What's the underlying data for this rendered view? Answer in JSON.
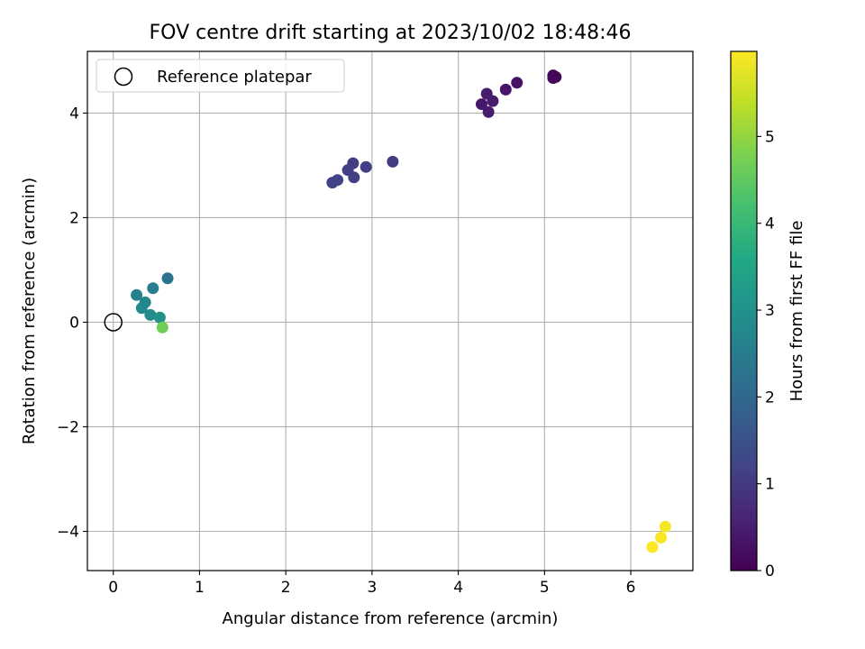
{
  "chart_data": {
    "type": "scatter",
    "title": "FOV centre drift starting at 2023/10/02 18:48:46",
    "xlabel": "Angular distance from reference (arcmin)",
    "ylabel": "Rotation from reference (arcmin)",
    "xlim": [
      -0.3,
      6.72
    ],
    "ylim": [
      -4.75,
      5.18
    ],
    "xticks": [
      0,
      1,
      2,
      3,
      4,
      5,
      6
    ],
    "yticks": [
      -4,
      -2,
      0,
      2,
      4
    ],
    "xtick_labels": [
      "0",
      "1",
      "2",
      "3",
      "4",
      "5",
      "6"
    ],
    "ytick_labels": [
      "−4",
      "−2",
      "0",
      "2",
      "4"
    ],
    "grid": true,
    "legend": {
      "position": "upper-left",
      "label": "Reference platepar"
    },
    "reference_point": {
      "x": 0,
      "y": 0
    },
    "colorbar": {
      "label": "Hours from first FF file",
      "colormap": "viridis",
      "range": [
        0,
        5.98
      ],
      "ticks": [
        0,
        1,
        2,
        3,
        4,
        5
      ],
      "tick_labels": [
        "0",
        "1",
        "2",
        "3",
        "4",
        "5"
      ]
    },
    "points": [
      {
        "x": 5.1,
        "y": 4.72,
        "hours": 0.05
      },
      {
        "x": 5.13,
        "y": 4.69,
        "hours": 0.08
      },
      {
        "x": 5.1,
        "y": 4.67,
        "hours": 0.1
      },
      {
        "x": 4.68,
        "y": 4.58,
        "hours": 0.3
      },
      {
        "x": 4.55,
        "y": 4.45,
        "hours": 0.35
      },
      {
        "x": 4.33,
        "y": 4.37,
        "hours": 0.45
      },
      {
        "x": 4.4,
        "y": 4.23,
        "hours": 0.45
      },
      {
        "x": 4.27,
        "y": 4.17,
        "hours": 0.4
      },
      {
        "x": 4.35,
        "y": 4.02,
        "hours": 0.45
      },
      {
        "x": 3.24,
        "y": 3.07,
        "hours": 1.05
      },
      {
        "x": 2.78,
        "y": 3.04,
        "hours": 1.05
      },
      {
        "x": 2.93,
        "y": 2.97,
        "hours": 1.1
      },
      {
        "x": 2.72,
        "y": 2.91,
        "hours": 1.1
      },
      {
        "x": 2.79,
        "y": 2.77,
        "hours": 1.1
      },
      {
        "x": 2.6,
        "y": 2.72,
        "hours": 1.15
      },
      {
        "x": 2.54,
        "y": 2.67,
        "hours": 1.15
      },
      {
        "x": 0.63,
        "y": 0.84,
        "hours": 2.3
      },
      {
        "x": 0.46,
        "y": 0.65,
        "hours": 2.5
      },
      {
        "x": 0.27,
        "y": 0.52,
        "hours": 2.6
      },
      {
        "x": 0.37,
        "y": 0.38,
        "hours": 2.75
      },
      {
        "x": 0.33,
        "y": 0.27,
        "hours": 2.8
      },
      {
        "x": 0.43,
        "y": 0.14,
        "hours": 2.85
      },
      {
        "x": 0.54,
        "y": 0.09,
        "hours": 3.0
      },
      {
        "x": 0.57,
        "y": -0.1,
        "hours": 4.65
      },
      {
        "x": 6.4,
        "y": -3.91,
        "hours": 5.9
      },
      {
        "x": 6.35,
        "y": -4.12,
        "hours": 5.92
      },
      {
        "x": 6.25,
        "y": -4.3,
        "hours": 5.95
      }
    ]
  }
}
